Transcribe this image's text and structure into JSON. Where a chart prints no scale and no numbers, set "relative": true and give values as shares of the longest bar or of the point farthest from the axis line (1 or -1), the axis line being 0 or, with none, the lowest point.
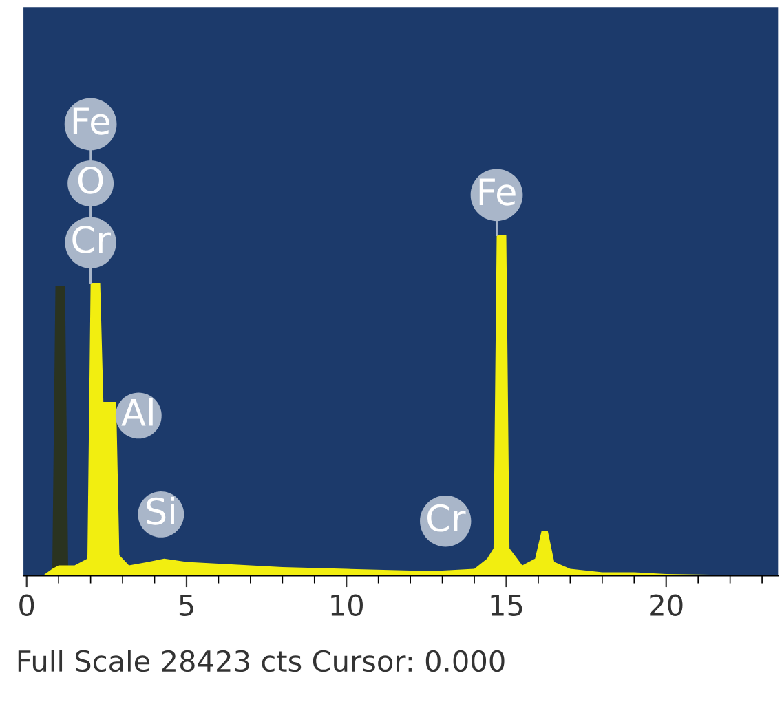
{
  "chart_data": {
    "type": "area",
    "relative": true,
    "series": [
      {
        "color": "#2a3320",
        "x": [
          0.8,
          0.9,
          1.2,
          1.3
        ],
        "values": [
          0,
          0.85,
          0.85,
          0
        ]
      },
      {
        "color": "#f2ee10",
        "x": [
          0.5,
          0.8,
          1.0,
          1.5,
          1.9,
          2.0,
          2.3,
          2.4,
          2.8,
          2.9,
          3.2,
          3.8,
          4.3,
          5.0,
          6,
          8,
          10,
          12,
          13,
          14,
          14.4,
          14.6,
          14.7,
          15.0,
          15.1,
          15.5,
          15.9,
          16.1,
          16.3,
          16.5,
          17,
          18,
          19,
          20,
          23.5
        ],
        "values": [
          0,
          0.02,
          0.03,
          0.03,
          0.05,
          0.86,
          0.86,
          0.51,
          0.51,
          0.06,
          0.03,
          0.04,
          0.05,
          0.04,
          0.035,
          0.025,
          0.02,
          0.015,
          0.015,
          0.02,
          0.05,
          0.08,
          1.0,
          1.0,
          0.08,
          0.03,
          0.05,
          0.13,
          0.13,
          0.04,
          0.02,
          0.01,
          0.01,
          0.005,
          0
        ]
      }
    ],
    "xlim": [
      -0.1,
      23.5
    ],
    "xticks": [
      0,
      5,
      10,
      15,
      20
    ],
    "annotations": [
      {
        "text": "Fe",
        "x": 2.0,
        "y": 0.86
      },
      {
        "text": "O",
        "x": 2.0,
        "y": 0.86
      },
      {
        "text": "Cr",
        "x": 2.0,
        "y": 0.86
      },
      {
        "text": "Al",
        "x": 3.5,
        "y": 0.47
      },
      {
        "text": "Si",
        "x": 4.2,
        "y": 0.18
      },
      {
        "text": "Fe",
        "x": 14.7,
        "y": 1.0
      },
      {
        "text": "Cr",
        "x": 13.1,
        "y": 0.16
      },
      "Full Scale 28423 cts Cursor: 0.000"
    ]
  }
}
